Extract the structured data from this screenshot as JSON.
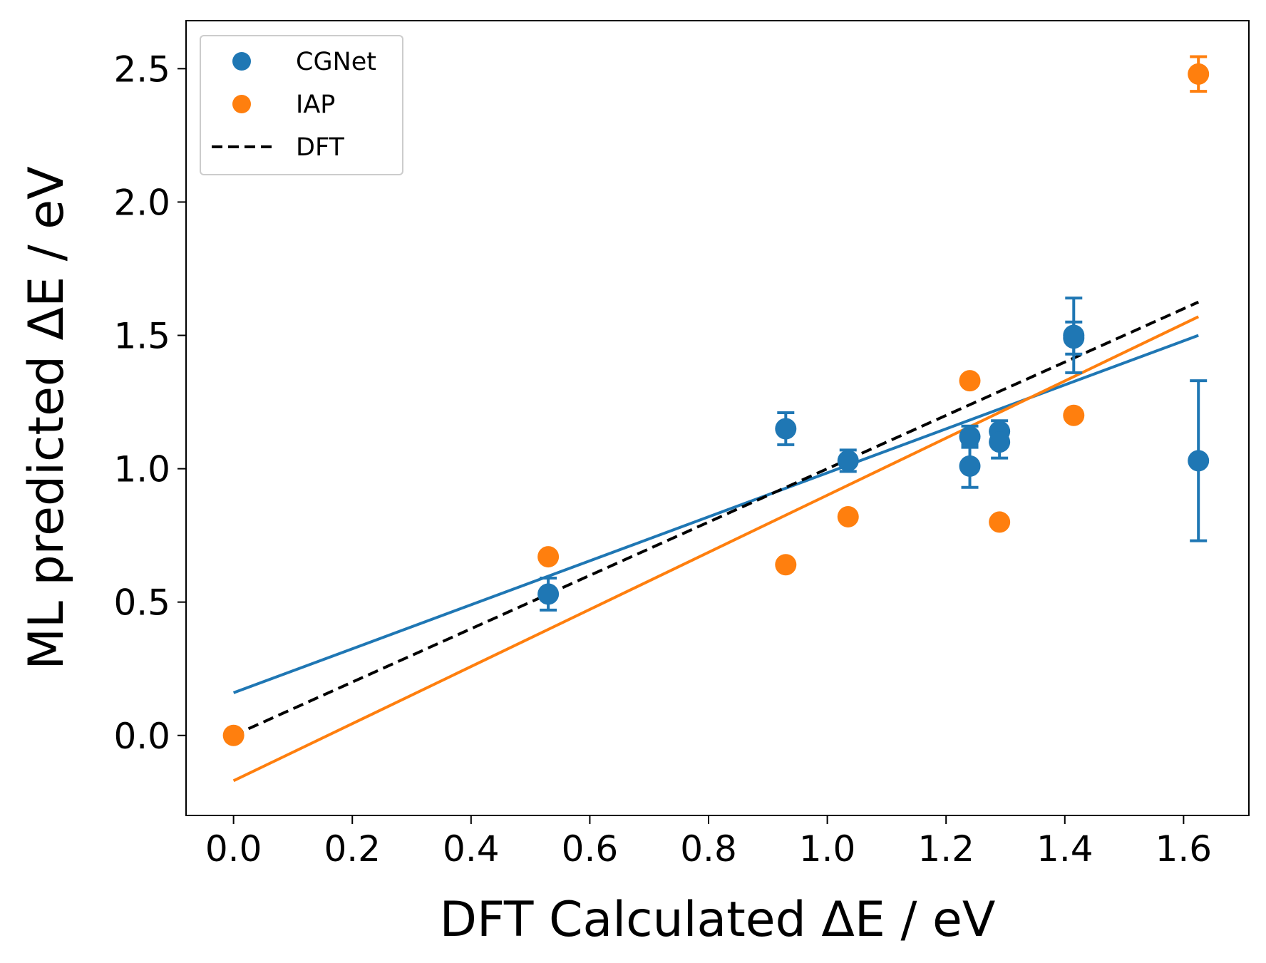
{
  "chart_data": {
    "type": "scatter",
    "title": "",
    "xlabel": "DFT Calculated ΔE / eV",
    "ylabel": "ML predicted ΔE / eV",
    "xlim": [
      -0.08,
      1.71
    ],
    "ylim": [
      -0.3,
      2.68
    ],
    "xticks": [
      0.0,
      0.2,
      0.4,
      0.6,
      0.8,
      1.0,
      1.2,
      1.4,
      1.6
    ],
    "xtick_labels": [
      "0.0",
      "0.2",
      "0.4",
      "0.6",
      "0.8",
      "1.0",
      "1.2",
      "1.4",
      "1.6"
    ],
    "yticks": [
      0.0,
      0.5,
      1.0,
      1.5,
      2.0,
      2.5
    ],
    "ytick_labels": [
      "0.0",
      "0.5",
      "1.0",
      "1.5",
      "2.0",
      "2.5"
    ],
    "grid": false,
    "legend": {
      "position": "top-left",
      "entries": [
        {
          "label": "CGNet",
          "kind": "marker",
          "color": "#1f77b4"
        },
        {
          "label": "IAP",
          "kind": "marker",
          "color": "#ff7f0e"
        },
        {
          "label": "DFT",
          "kind": "dashed-line",
          "color": "#000000"
        }
      ]
    },
    "series": [
      {
        "name": "CGNet",
        "kind": "scatter-errorbar",
        "color": "#1f77b4",
        "points": [
          {
            "x": 0.53,
            "y": 0.53,
            "yerr": 0.06
          },
          {
            "x": 0.93,
            "y": 1.15,
            "yerr": 0.06
          },
          {
            "x": 1.035,
            "y": 1.03,
            "yerr": 0.04
          },
          {
            "x": 1.24,
            "y": 1.12,
            "yerr": 0.04
          },
          {
            "x": 1.24,
            "y": 1.01,
            "yerr": 0.08
          },
          {
            "x": 1.29,
            "y": 1.14,
            "yerr": 0.04
          },
          {
            "x": 1.29,
            "y": 1.1,
            "yerr": 0.06
          },
          {
            "x": 1.415,
            "y": 1.5,
            "yerr": 0.14
          },
          {
            "x": 1.415,
            "y": 1.49,
            "yerr": 0.06
          },
          {
            "x": 1.625,
            "y": 1.03,
            "yerr": 0.3
          }
        ]
      },
      {
        "name": "IAP",
        "kind": "scatter-errorbar",
        "color": "#ff7f0e",
        "points": [
          {
            "x": 0.0,
            "y": 0.0,
            "yerr": 0.0
          },
          {
            "x": 0.53,
            "y": 0.67,
            "yerr": 0.0
          },
          {
            "x": 0.93,
            "y": 0.64,
            "yerr": 0.0
          },
          {
            "x": 1.035,
            "y": 0.82,
            "yerr": 0.0
          },
          {
            "x": 1.24,
            "y": 1.33,
            "yerr": 0.0
          },
          {
            "x": 1.29,
            "y": 0.8,
            "yerr": 0.0
          },
          {
            "x": 1.415,
            "y": 1.2,
            "yerr": 0.0
          },
          {
            "x": 1.625,
            "y": 2.48,
            "yerr": 0.065
          }
        ]
      }
    ],
    "fit_lines": [
      {
        "series": "CGNet",
        "color": "#1f77b4",
        "x": [
          0.0,
          1.625
        ],
        "y": [
          0.16,
          1.5
        ]
      },
      {
        "series": "IAP",
        "color": "#ff7f0e",
        "x": [
          0.0,
          1.625
        ],
        "y": [
          -0.17,
          1.57
        ]
      },
      {
        "series": "DFT",
        "color": "#000000",
        "style": "dashed",
        "x": [
          0.0,
          1.625
        ],
        "y": [
          0.0,
          1.625
        ]
      }
    ]
  }
}
